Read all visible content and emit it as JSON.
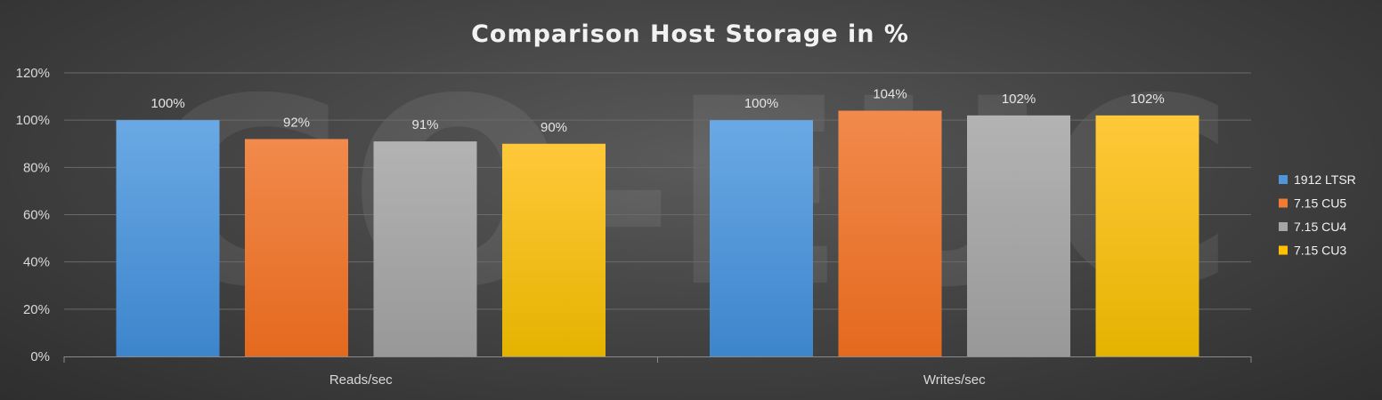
{
  "watermark": "GO-EUC",
  "chart_data": {
    "type": "bar",
    "title": "Comparison Host Storage in %",
    "xlabel": "",
    "ylabel": "",
    "categories": [
      "Reads/sec",
      "Writes/sec"
    ],
    "ylim": [
      0,
      120
    ],
    "yticks": [
      0,
      20,
      40,
      60,
      80,
      100,
      120
    ],
    "ytick_labels": [
      "0%",
      "20%",
      "40%",
      "60%",
      "80%",
      "100%",
      "120%"
    ],
    "grid": true,
    "legend_position": "right",
    "series": [
      {
        "name": "1912 LTSR",
        "values": [
          100,
          100
        ],
        "labels": [
          "100%",
          "100%"
        ],
        "color": "#4f95d9",
        "color_top": "#6aa9e4",
        "color_bottom": "#3d85cc"
      },
      {
        "name": "7.15 CU5",
        "values": [
          92,
          104
        ],
        "labels": [
          "92%",
          "104%"
        ],
        "color": "#ef7b35",
        "color_top": "#f18a4c",
        "color_bottom": "#e4691e"
      },
      {
        "name": "7.15 CU4",
        "values": [
          91,
          102
        ],
        "labels": [
          "91%",
          "102%"
        ],
        "color": "#a5a5a5",
        "color_top": "#b3b3b3",
        "color_bottom": "#989898"
      },
      {
        "name": "7.15 CU3",
        "values": [
          90,
          102
        ],
        "labels": [
          "90%",
          "102%"
        ],
        "color": "#ffc000",
        "color_top": "#ffc83a",
        "color_bottom": "#e4b300"
      }
    ]
  }
}
